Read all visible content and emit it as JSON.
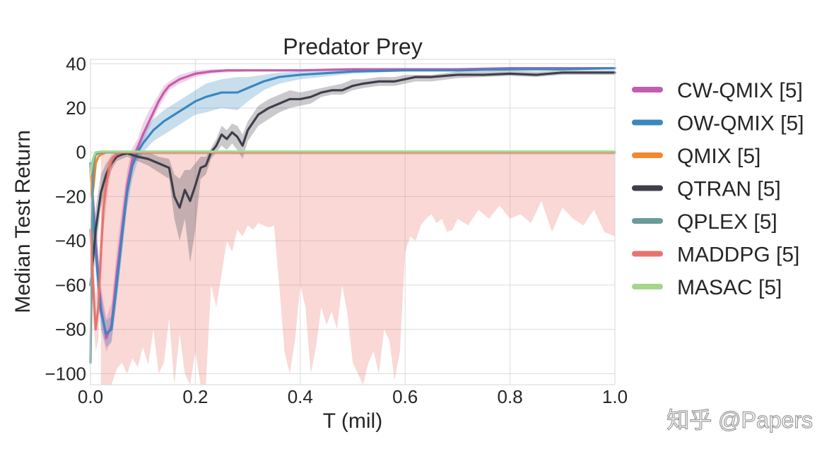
{
  "chart_data": {
    "type": "line",
    "title": "Predator Prey",
    "xlabel": "T (mil)",
    "ylabel": "Median Test Return",
    "xlim": [
      0.0,
      1.0
    ],
    "ylim": [
      -105,
      42
    ],
    "xticks": [
      0.0,
      0.2,
      0.4,
      0.6,
      0.8,
      1.0
    ],
    "xtick_labels": [
      "0.0",
      "0.2",
      "0.4",
      "0.6",
      "0.8",
      "1.0"
    ],
    "yticks": [
      40,
      20,
      0,
      -20,
      -40,
      -60,
      -80,
      -100
    ],
    "ytick_labels": [
      "40",
      "20",
      "0",
      "−20",
      "−40",
      "−60",
      "−80",
      "−100"
    ],
    "grid": true,
    "legend_position": "right",
    "series": [
      {
        "name": "CW-QMIX [5]",
        "color": "#c45cae",
        "x": [
          0.0,
          0.01,
          0.02,
          0.03,
          0.04,
          0.05,
          0.06,
          0.07,
          0.08,
          0.09,
          0.1,
          0.11,
          0.12,
          0.13,
          0.14,
          0.15,
          0.17,
          0.2,
          0.23,
          0.26,
          0.3,
          0.35,
          0.4,
          0.5,
          0.6,
          0.7,
          0.8,
          0.9,
          1.0
        ],
        "y": [
          -5,
          -40,
          -70,
          -84,
          -78,
          -55,
          -35,
          -15,
          -3,
          2,
          8,
          13,
          18,
          23,
          27,
          30,
          33,
          35.5,
          36.5,
          37,
          37,
          37,
          37,
          37.5,
          37.5,
          37.5,
          38,
          38,
          38
        ],
        "band_low": [
          -10,
          -50,
          -78,
          -90,
          -85,
          -65,
          -45,
          -22,
          -8,
          -2,
          4,
          10,
          15,
          20,
          24,
          28,
          31,
          34,
          35.5,
          36,
          36.5,
          36.5,
          36.5,
          37,
          37,
          37,
          37.5,
          37.5,
          37.5
        ],
        "band_high": [
          0,
          -30,
          -60,
          -75,
          -68,
          -45,
          -25,
          -8,
          2,
          6,
          13,
          18,
          22,
          26,
          30,
          32,
          35,
          37,
          37.5,
          37.5,
          37.5,
          37.5,
          37.5,
          38,
          38,
          38,
          38.5,
          38.5,
          38.5
        ]
      },
      {
        "name": "OW-QMIX [5]",
        "color": "#3a87c0",
        "x": [
          0.0,
          0.01,
          0.02,
          0.03,
          0.04,
          0.05,
          0.06,
          0.07,
          0.08,
          0.09,
          0.1,
          0.12,
          0.14,
          0.16,
          0.18,
          0.2,
          0.22,
          0.25,
          0.28,
          0.3,
          0.33,
          0.36,
          0.4,
          0.5,
          0.6,
          0.7,
          0.8,
          0.9,
          1.0
        ],
        "y": [
          -5,
          -45,
          -72,
          -82,
          -80,
          -60,
          -38,
          -18,
          -6,
          0,
          4,
          10,
          14,
          17,
          20,
          23,
          25,
          27,
          27,
          29,
          32,
          34,
          35,
          36.5,
          37,
          37,
          37.5,
          37.5,
          38
        ],
        "band_low": [
          -10,
          -55,
          -80,
          -88,
          -86,
          -68,
          -46,
          -25,
          -12,
          -4,
          0,
          5,
          8,
          11,
          14,
          17,
          18,
          20,
          19,
          23,
          28,
          31,
          33,
          35.5,
          36.5,
          36.5,
          37,
          37,
          37.5
        ],
        "band_high": [
          0,
          -35,
          -64,
          -76,
          -74,
          -52,
          -30,
          -12,
          -1,
          4,
          9,
          15,
          19,
          22,
          25,
          28,
          31,
          33,
          34,
          34,
          35,
          36,
          36.5,
          37.5,
          37.5,
          37.5,
          38,
          38,
          38.5
        ]
      },
      {
        "name": "QMIX [5]",
        "color": "#f0892f",
        "x": [
          0.0,
          0.003,
          0.006,
          0.01,
          0.015,
          0.02,
          0.03,
          0.05,
          0.1,
          0.3,
          0.6,
          1.0
        ],
        "y": [
          -8,
          -20,
          -15,
          -5,
          -2,
          -1,
          0,
          0,
          0,
          0,
          0,
          0
        ]
      },
      {
        "name": "QTRAN [5]",
        "color": "#3f3f4c",
        "x": [
          0.0,
          0.01,
          0.02,
          0.03,
          0.04,
          0.05,
          0.06,
          0.07,
          0.09,
          0.11,
          0.13,
          0.15,
          0.16,
          0.17,
          0.18,
          0.19,
          0.2,
          0.21,
          0.22,
          0.23,
          0.24,
          0.25,
          0.26,
          0.27,
          0.28,
          0.29,
          0.3,
          0.32,
          0.34,
          0.36,
          0.38,
          0.4,
          0.42,
          0.44,
          0.46,
          0.48,
          0.5,
          0.52,
          0.55,
          0.58,
          0.6,
          0.62,
          0.65,
          0.7,
          0.75,
          0.8,
          0.85,
          0.9,
          0.95,
          1.0
        ],
        "y": [
          -60,
          -35,
          -18,
          -10,
          -5,
          -2,
          -1,
          -0.5,
          -2,
          -3,
          -5,
          -7,
          -20,
          -25,
          -17,
          -22,
          -15,
          -7,
          -6,
          0,
          3,
          8,
          6,
          9,
          7,
          3,
          10,
          17,
          20,
          22,
          24,
          24,
          25,
          27,
          28,
          28,
          30,
          31,
          32,
          32,
          33,
          34,
          34,
          35,
          35,
          35.5,
          35,
          36,
          36,
          36
        ],
        "band_low": [
          -70,
          -45,
          -25,
          -15,
          -8,
          -4,
          -3,
          -2,
          -4,
          -6,
          -9,
          -12,
          -30,
          -40,
          -30,
          -50,
          -35,
          -12,
          -10,
          -3,
          0,
          3,
          1,
          4,
          1,
          -3,
          5,
          12,
          15,
          18,
          20,
          21,
          22,
          25,
          26,
          26,
          28,
          29,
          30,
          30,
          31,
          32,
          32,
          33.5,
          34,
          34.5,
          34,
          35,
          35,
          35
        ],
        "band_high": [
          -50,
          -25,
          -10,
          -5,
          -2,
          0,
          0,
          0,
          0,
          0,
          -2,
          -3,
          -10,
          -12,
          -8,
          -8,
          -5,
          -2,
          -2,
          2,
          6,
          12,
          10,
          13,
          12,
          8,
          14,
          21,
          24,
          26,
          28,
          27,
          28,
          29,
          30,
          31,
          33,
          33,
          34,
          34,
          35,
          35,
          35,
          36.5,
          36.5,
          37,
          36.5,
          37,
          37,
          37
        ]
      },
      {
        "name": "QPLEX [5]",
        "color": "#6b9a9b",
        "x": [
          0.0,
          0.002,
          0.004,
          0.006,
          0.01,
          0.02,
          0.05,
          0.1,
          0.3,
          0.6,
          1.0
        ],
        "y": [
          -95,
          -60,
          -20,
          -5,
          -1,
          0,
          0,
          0,
          0,
          0,
          0
        ]
      },
      {
        "name": "MADDPG [5]",
        "color": "#e8736c",
        "x": [
          0.0,
          0.005,
          0.01,
          0.015,
          0.02,
          0.025,
          0.03,
          0.035,
          0.04,
          0.045,
          0.05,
          0.06,
          0.08,
          0.1,
          0.3,
          0.6,
          1.0
        ],
        "y": [
          -35,
          -60,
          -80,
          -70,
          -45,
          -25,
          -15,
          -8,
          -4,
          -2,
          -1,
          0,
          0,
          0,
          0,
          0,
          0
        ],
        "band_low": [
          -45,
          -75,
          -90,
          -85,
          -60,
          -35,
          -25,
          -15,
          -8,
          -5,
          -3,
          -1,
          -1,
          -1,
          -1,
          -1,
          -1
        ],
        "band_high": [
          -25,
          -45,
          -65,
          -55,
          -30,
          -15,
          -8,
          -3,
          -1,
          0,
          0,
          0,
          0,
          0,
          0,
          0,
          0
        ],
        "spread_x": [
          0.02,
          0.04,
          0.05,
          0.06,
          0.07,
          0.08,
          0.09,
          0.1,
          0.11,
          0.12,
          0.13,
          0.14,
          0.15,
          0.16,
          0.17,
          0.18,
          0.19,
          0.2,
          0.21,
          0.22,
          0.23,
          0.24,
          0.25,
          0.26,
          0.27,
          0.28,
          0.29,
          0.3,
          0.31,
          0.32,
          0.33,
          0.34,
          0.35,
          0.36,
          0.37,
          0.38,
          0.39,
          0.4,
          0.41,
          0.42,
          0.43,
          0.44,
          0.45,
          0.46,
          0.47,
          0.48,
          0.49,
          0.5,
          0.51,
          0.52,
          0.53,
          0.54,
          0.55,
          0.56,
          0.57,
          0.58,
          0.59,
          0.6,
          0.61,
          0.62,
          0.63,
          0.64,
          0.65,
          0.66,
          0.67,
          0.68,
          0.69,
          0.7,
          0.72,
          0.74,
          0.76,
          0.78,
          0.8,
          0.82,
          0.84,
          0.86,
          0.88,
          0.9,
          0.92,
          0.94,
          0.96,
          0.98,
          1.0
        ],
        "spread_low": [
          -105,
          -105,
          -98,
          -95,
          -100,
          -93,
          -97,
          -88,
          -96,
          -80,
          -100,
          -95,
          -75,
          -105,
          -82,
          -100,
          -105,
          -90,
          -105,
          -105,
          -60,
          -70,
          -55,
          -40,
          -45,
          -35,
          -38,
          -33,
          -35,
          -32,
          -33,
          -34,
          -33,
          -60,
          -90,
          -100,
          -85,
          -60,
          -70,
          -100,
          -88,
          -70,
          -78,
          -72,
          -80,
          -60,
          -73,
          -95,
          -100,
          -105,
          -95,
          -90,
          -100,
          -80,
          -85,
          -103,
          -90,
          -45,
          -38,
          -40,
          -33,
          -30,
          -28,
          -32,
          -30,
          -36,
          -35,
          -30,
          -33,
          -26,
          -30,
          -24,
          -30,
          -28,
          -32,
          -22,
          -36,
          -25,
          -30,
          -33,
          -26,
          -36,
          -38
        ]
      },
      {
        "name": "MASAC [5]",
        "color": "#a4d78c",
        "x": [
          0.0,
          0.005,
          0.01,
          0.02,
          0.05,
          0.1,
          0.3,
          0.6,
          1.0
        ],
        "y": [
          -10,
          -3,
          0,
          0.3,
          0.3,
          0.3,
          0.3,
          0.3,
          0.3
        ]
      }
    ]
  },
  "watermark": {
    "text": "知乎 @Papers"
  }
}
